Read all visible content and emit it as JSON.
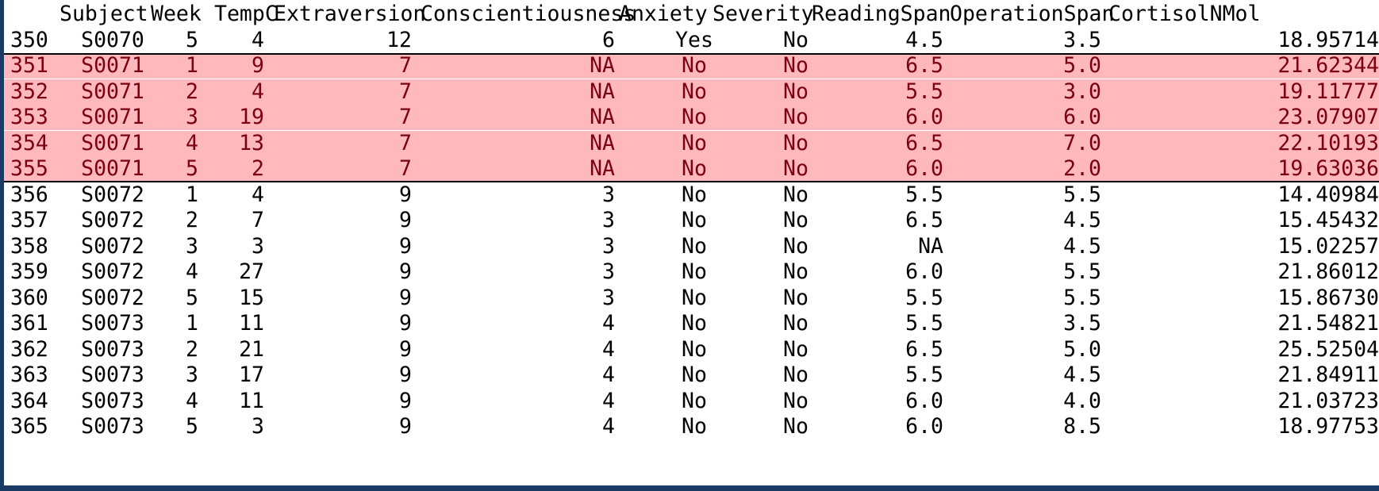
{
  "table": {
    "columns": [
      "",
      "Subject",
      "Week",
      "TempC",
      "Extraversion",
      "Conscientiousness",
      "Anxiety",
      "Severity",
      "ReadingSpan",
      "OperationSpan",
      "CortisolNMol"
    ],
    "highlight_color": "#ffb8bb",
    "highlight_text_color": "#7a0012",
    "rows": [
      {
        "id": "350",
        "subject": "S0070",
        "week": "5",
        "tempc": "4",
        "extraversion": "12",
        "conscientiousness": "6",
        "anxiety": "Yes",
        "severity": "No",
        "readingspan": "4.5",
        "operationspan": "3.5",
        "cortisol": "18.95714",
        "highlight": false
      },
      {
        "id": "351",
        "subject": "S0071",
        "week": "1",
        "tempc": "9",
        "extraversion": "7",
        "conscientiousness": "NA",
        "anxiety": "No",
        "severity": "No",
        "readingspan": "6.5",
        "operationspan": "5.0",
        "cortisol": "21.62344",
        "highlight": true
      },
      {
        "id": "352",
        "subject": "S0071",
        "week": "2",
        "tempc": "4",
        "extraversion": "7",
        "conscientiousness": "NA",
        "anxiety": "No",
        "severity": "No",
        "readingspan": "5.5",
        "operationspan": "3.0",
        "cortisol": "19.11777",
        "highlight": true
      },
      {
        "id": "353",
        "subject": "S0071",
        "week": "3",
        "tempc": "19",
        "extraversion": "7",
        "conscientiousness": "NA",
        "anxiety": "No",
        "severity": "No",
        "readingspan": "6.0",
        "operationspan": "6.0",
        "cortisol": "23.07907",
        "highlight": true
      },
      {
        "id": "354",
        "subject": "S0071",
        "week": "4",
        "tempc": "13",
        "extraversion": "7",
        "conscientiousness": "NA",
        "anxiety": "No",
        "severity": "No",
        "readingspan": "6.5",
        "operationspan": "7.0",
        "cortisol": "22.10193",
        "highlight": true
      },
      {
        "id": "355",
        "subject": "S0071",
        "week": "5",
        "tempc": "2",
        "extraversion": "7",
        "conscientiousness": "NA",
        "anxiety": "No",
        "severity": "No",
        "readingspan": "6.0",
        "operationspan": "2.0",
        "cortisol": "19.63036",
        "highlight": true
      },
      {
        "id": "356",
        "subject": "S0072",
        "week": "1",
        "tempc": "4",
        "extraversion": "9",
        "conscientiousness": "3",
        "anxiety": "No",
        "severity": "No",
        "readingspan": "5.5",
        "operationspan": "5.5",
        "cortisol": "14.40984",
        "highlight": false
      },
      {
        "id": "357",
        "subject": "S0072",
        "week": "2",
        "tempc": "7",
        "extraversion": "9",
        "conscientiousness": "3",
        "anxiety": "No",
        "severity": "No",
        "readingspan": "6.5",
        "operationspan": "4.5",
        "cortisol": "15.45432",
        "highlight": false
      },
      {
        "id": "358",
        "subject": "S0072",
        "week": "3",
        "tempc": "3",
        "extraversion": "9",
        "conscientiousness": "3",
        "anxiety": "No",
        "severity": "No",
        "readingspan": "NA",
        "operationspan": "4.5",
        "cortisol": "15.02257",
        "highlight": false
      },
      {
        "id": "359",
        "subject": "S0072",
        "week": "4",
        "tempc": "27",
        "extraversion": "9",
        "conscientiousness": "3",
        "anxiety": "No",
        "severity": "No",
        "readingspan": "6.0",
        "operationspan": "5.5",
        "cortisol": "21.86012",
        "highlight": false
      },
      {
        "id": "360",
        "subject": "S0072",
        "week": "5",
        "tempc": "15",
        "extraversion": "9",
        "conscientiousness": "3",
        "anxiety": "No",
        "severity": "No",
        "readingspan": "5.5",
        "operationspan": "5.5",
        "cortisol": "15.86730",
        "highlight": false
      },
      {
        "id": "361",
        "subject": "S0073",
        "week": "1",
        "tempc": "11",
        "extraversion": "9",
        "conscientiousness": "4",
        "anxiety": "No",
        "severity": "No",
        "readingspan": "5.5",
        "operationspan": "3.5",
        "cortisol": "21.54821",
        "highlight": false
      },
      {
        "id": "362",
        "subject": "S0073",
        "week": "2",
        "tempc": "21",
        "extraversion": "9",
        "conscientiousness": "4",
        "anxiety": "No",
        "severity": "No",
        "readingspan": "6.5",
        "operationspan": "5.0",
        "cortisol": "25.52504",
        "highlight": false
      },
      {
        "id": "363",
        "subject": "S0073",
        "week": "3",
        "tempc": "17",
        "extraversion": "9",
        "conscientiousness": "4",
        "anxiety": "No",
        "severity": "No",
        "readingspan": "5.5",
        "operationspan": "4.5",
        "cortisol": "21.84911",
        "highlight": false
      },
      {
        "id": "364",
        "subject": "S0073",
        "week": "4",
        "tempc": "11",
        "extraversion": "9",
        "conscientiousness": "4",
        "anxiety": "No",
        "severity": "No",
        "readingspan": "6.0",
        "operationspan": "4.0",
        "cortisol": "21.03723",
        "highlight": false
      },
      {
        "id": "365",
        "subject": "S0073",
        "week": "5",
        "tempc": "3",
        "extraversion": "9",
        "conscientiousness": "4",
        "anxiety": "No",
        "severity": "No",
        "readingspan": "6.0",
        "operationspan": "8.5",
        "cortisol": "18.97753",
        "highlight": false
      }
    ]
  }
}
